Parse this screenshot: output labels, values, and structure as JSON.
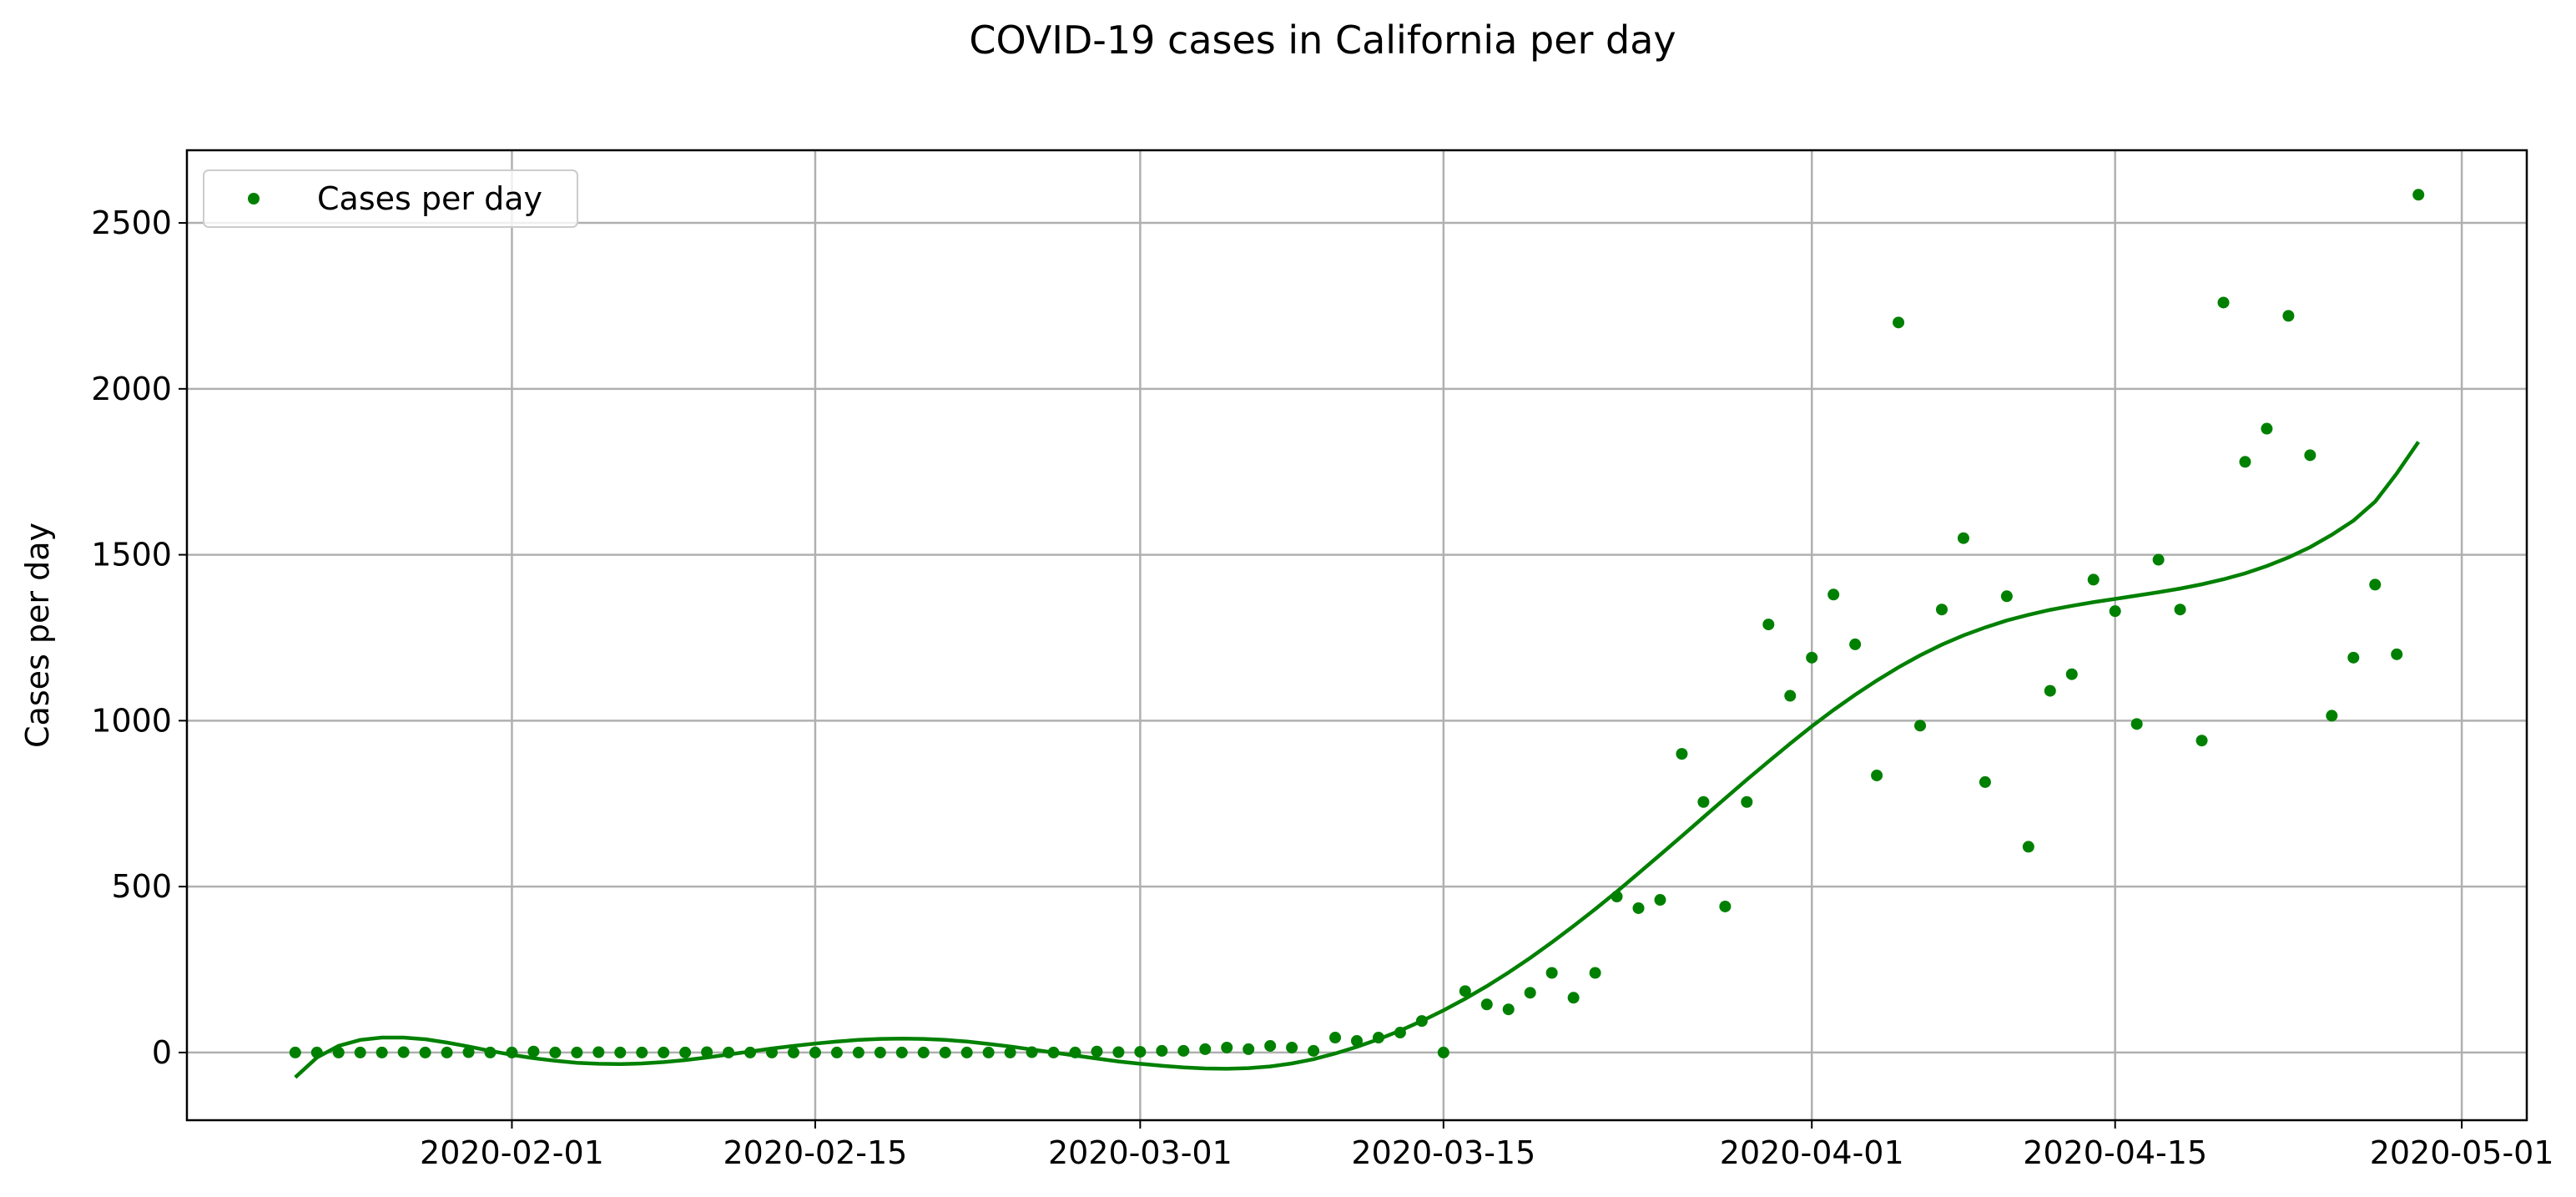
{
  "chart_data": {
    "type": "scatter",
    "title": "COVID-19 cases in California per day",
    "ylabel": "Cases per day",
    "x": [
      "2020-01-22",
      "2020-01-23",
      "2020-01-24",
      "2020-01-25",
      "2020-01-26",
      "2020-01-27",
      "2020-01-28",
      "2020-01-29",
      "2020-01-30",
      "2020-01-31",
      "2020-02-01",
      "2020-02-02",
      "2020-02-03",
      "2020-02-04",
      "2020-02-05",
      "2020-02-06",
      "2020-02-07",
      "2020-02-08",
      "2020-02-09",
      "2020-02-10",
      "2020-02-11",
      "2020-02-12",
      "2020-02-13",
      "2020-02-14",
      "2020-02-15",
      "2020-02-16",
      "2020-02-17",
      "2020-02-18",
      "2020-02-19",
      "2020-02-20",
      "2020-02-21",
      "2020-02-22",
      "2020-02-23",
      "2020-02-24",
      "2020-02-25",
      "2020-02-26",
      "2020-02-27",
      "2020-02-28",
      "2020-02-29",
      "2020-03-01",
      "2020-03-02",
      "2020-03-03",
      "2020-03-04",
      "2020-03-05",
      "2020-03-06",
      "2020-03-07",
      "2020-03-08",
      "2020-03-09",
      "2020-03-10",
      "2020-03-11",
      "2020-03-12",
      "2020-03-13",
      "2020-03-14",
      "2020-03-15",
      "2020-03-16",
      "2020-03-17",
      "2020-03-18",
      "2020-03-19",
      "2020-03-20",
      "2020-03-21",
      "2020-03-22",
      "2020-03-23",
      "2020-03-24",
      "2020-03-25",
      "2020-03-26",
      "2020-03-27",
      "2020-03-28",
      "2020-03-29",
      "2020-03-30",
      "2020-03-31",
      "2020-04-01",
      "2020-04-02",
      "2020-04-03",
      "2020-04-04",
      "2020-04-05",
      "2020-04-06",
      "2020-04-07",
      "2020-04-08",
      "2020-04-09",
      "2020-04-10",
      "2020-04-11",
      "2020-04-12",
      "2020-04-13",
      "2020-04-14",
      "2020-04-15",
      "2020-04-16",
      "2020-04-17",
      "2020-04-18",
      "2020-04-19",
      "2020-04-20",
      "2020-04-21",
      "2020-04-22",
      "2020-04-23",
      "2020-04-24",
      "2020-04-25",
      "2020-04-26",
      "2020-04-27",
      "2020-04-28",
      "2020-04-29"
    ],
    "series": [
      {
        "name": "Cases per day",
        "type": "scatter",
        "color": "#008000",
        "values": [
          0,
          0,
          0,
          0,
          0,
          1,
          0,
          0,
          1,
          0,
          0,
          3,
          0,
          0,
          1,
          0,
          0,
          0,
          0,
          1,
          0,
          0,
          0,
          0,
          0,
          0,
          0,
          0,
          0,
          0,
          0,
          0,
          0,
          0,
          1,
          0,
          0,
          3,
          1,
          2,
          5,
          5,
          10,
          15,
          10,
          20,
          15,
          5,
          45,
          35,
          45,
          60,
          95,
          0,
          185,
          145,
          130,
          180,
          240,
          165,
          240,
          470,
          435,
          460,
          900,
          755,
          440,
          755,
          1290,
          1075,
          1190,
          1380,
          1230,
          835,
          2200,
          985,
          1335,
          1550,
          815,
          1375,
          620,
          1090,
          1140,
          1425,
          1330,
          990,
          1485,
          1335,
          940,
          2260,
          1780,
          1880,
          2220,
          1800,
          1015,
          1190,
          1410,
          1200,
          2585
        ]
      },
      {
        "type": "line",
        "color": "#008000",
        "values": [
          -75,
          -15,
          20,
          38,
          45,
          45,
          40,
          30,
          18,
          5,
          -7,
          -17,
          -25,
          -31,
          -34,
          -35,
          -33,
          -29,
          -23,
          -15,
          -6,
          3,
          12,
          20,
          27,
          33,
          38,
          41,
          42,
          41,
          38,
          33,
          26,
          18,
          9,
          0,
          -9,
          -18,
          -27,
          -34,
          -40,
          -45,
          -48,
          -49,
          -47,
          -42,
          -33,
          -20,
          -3,
          17,
          40,
          66,
          95,
          127,
          162,
          200,
          241,
          285,
          332,
          381,
          432,
          485,
          540,
          596,
          652,
          709,
          766,
          822,
          877,
          931,
          983,
          1032,
          1078,
          1121,
          1161,
          1197,
          1229,
          1257,
          1281,
          1302,
          1319,
          1334,
          1346,
          1357,
          1367,
          1377,
          1387,
          1398,
          1411,
          1426,
          1444,
          1466,
          1492,
          1523,
          1560,
          1603,
          1660,
          1745,
          1840
        ]
      }
    ],
    "xlim": [
      "2020-01-17",
      "2020-05-04"
    ],
    "xticks": [
      "2020-02-01",
      "2020-02-15",
      "2020-03-01",
      "2020-03-15",
      "2020-04-01",
      "2020-04-15",
      "2020-05-01"
    ],
    "ylim": [
      -204,
      2719
    ],
    "yticks": [
      0,
      500,
      1000,
      1500,
      2000,
      2500
    ],
    "grid": true,
    "legend": "upper left"
  }
}
